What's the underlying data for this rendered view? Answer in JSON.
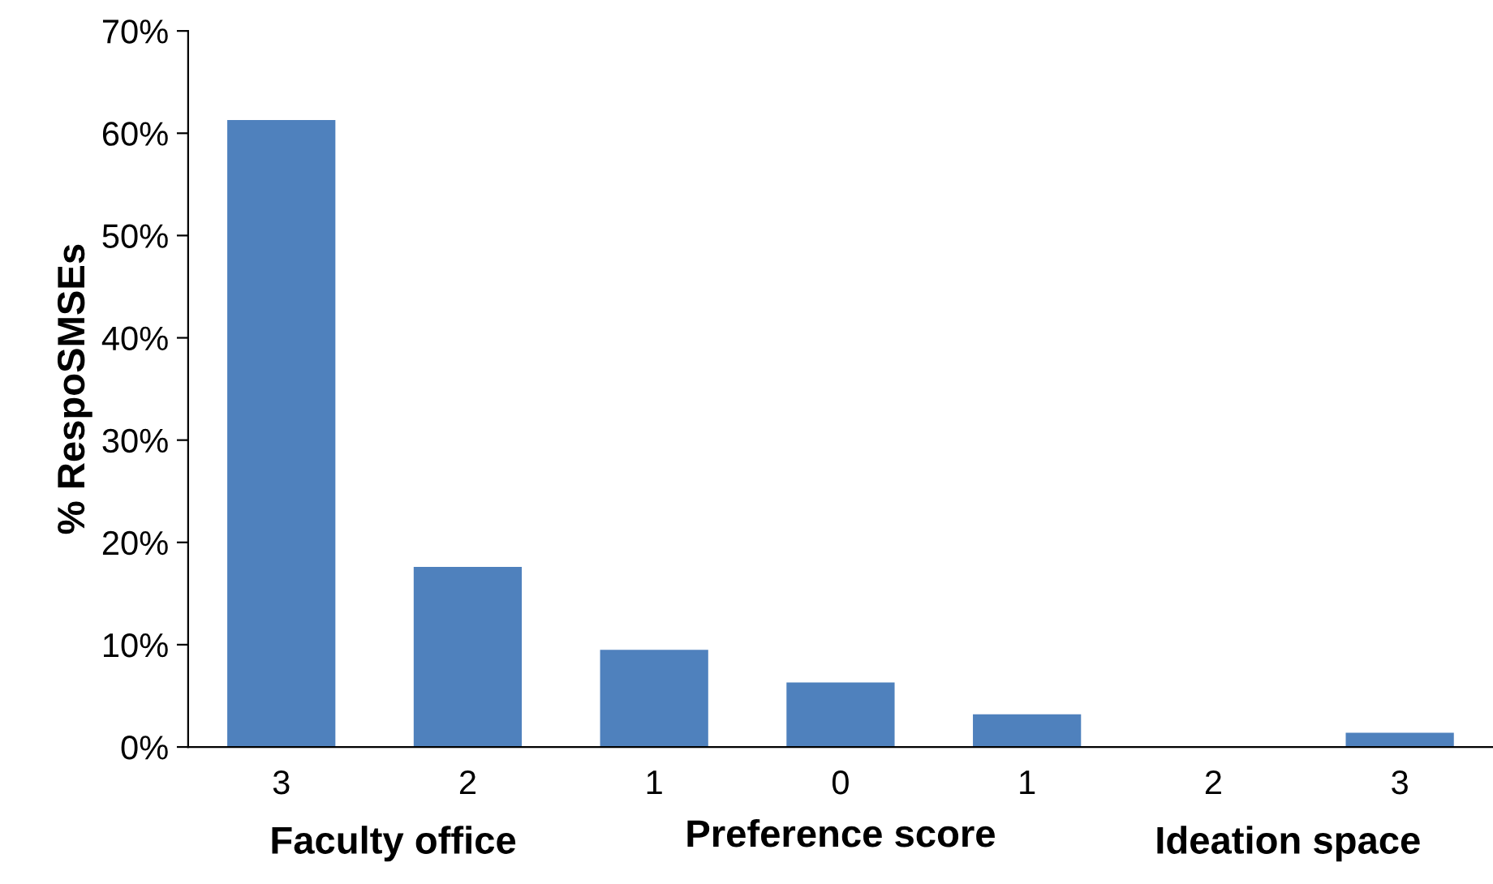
{
  "chart_data": {
    "type": "bar",
    "ylabel": "% RespoSMSEs",
    "xlabel": "Preference score",
    "categories": [
      "3",
      "2",
      "1",
      "0",
      "1",
      "2",
      "3"
    ],
    "values": [
      61.3,
      17.6,
      9.5,
      6.3,
      3.2,
      0,
      1.4
    ],
    "color": "#4f81bd",
    "ylim": [
      0,
      70
    ],
    "yticks": [
      {
        "value": 0,
        "label": "0%"
      },
      {
        "value": 10,
        "label": "10%"
      },
      {
        "value": 20,
        "label": "20%"
      },
      {
        "value": 30,
        "label": "30%"
      },
      {
        "value": 40,
        "label": "40%"
      },
      {
        "value": 50,
        "label": "50%"
      },
      {
        "value": 60,
        "label": "60%"
      },
      {
        "value": 70,
        "label": "70%"
      }
    ],
    "annotations": [
      "Faculty office",
      "Ideation space"
    ],
    "grid": false,
    "legend": false
  }
}
